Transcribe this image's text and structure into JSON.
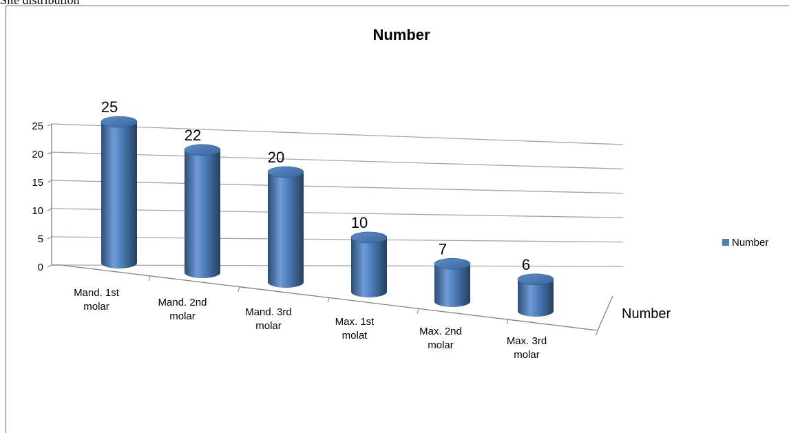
{
  "page": {
    "caption": "Site distribution"
  },
  "chart_data": {
    "type": "bar",
    "title": "Number",
    "categories": [
      [
        "Mand. 1st",
        "molar"
      ],
      [
        "Mand. 2nd",
        "molar"
      ],
      [
        "Mand. 3rd",
        "molar"
      ],
      [
        "Max. 1st",
        "molat"
      ],
      [
        "Max. 2nd",
        "molar"
      ],
      [
        "Max. 3rd",
        "molar"
      ]
    ],
    "series": [
      {
        "name": "Number",
        "values": [
          25,
          22,
          20,
          10,
          7,
          6
        ]
      }
    ],
    "depth_axis_label": "Number",
    "ylim": [
      0,
      25
    ],
    "yticks": [
      "0",
      "5",
      "10",
      "15",
      "20",
      "25"
    ],
    "grid": true,
    "legend": "right",
    "colors": {
      "bar_light": "#8db3e2",
      "bar_mid": "#4f81bd",
      "bar_dark": "#2c4d75",
      "gridline": "#a6a6a6",
      "frame": "#808080"
    }
  }
}
